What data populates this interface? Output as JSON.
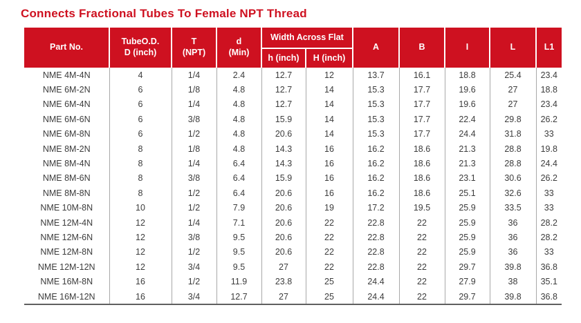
{
  "title": "Connects Fractional Tubes To Female NPT Thread",
  "colors": {
    "accent_red": "#ce1120",
    "header_text": "#ffffff",
    "body_text": "#3c3c3c",
    "grid_line": "#a8a8a8",
    "bottom_border": "#5f5f5f"
  },
  "table": {
    "headers": {
      "part_no": "Part No.",
      "tube_od": "TubeO.D.\nD (inch)",
      "t_npt": "T\n(NPT)",
      "d_min": "d\n(Min)",
      "width_across_flat": "Width Across Flat",
      "h_lower_inch": "h (inch)",
      "h_upper_inch": "H (inch)",
      "a": "A",
      "b": "B",
      "i": "I",
      "l": "L",
      "l1": "L1"
    },
    "rows": [
      [
        "NME 4M-4N",
        "4",
        "1/4",
        "2.4",
        "12.7",
        "12",
        "13.7",
        "16.1",
        "18.8",
        "25.4",
        "23.4"
      ],
      [
        "NME 6M-2N",
        "6",
        "1/8",
        "4.8",
        "12.7",
        "14",
        "15.3",
        "17.7",
        "19.6",
        "27",
        "18.8"
      ],
      [
        "NME 6M-4N",
        "6",
        "1/4",
        "4.8",
        "12.7",
        "14",
        "15.3",
        "17.7",
        "19.6",
        "27",
        "23.4"
      ],
      [
        "NME 6M-6N",
        "6",
        "3/8",
        "4.8",
        "15.9",
        "14",
        "15.3",
        "17.7",
        "22.4",
        "29.8",
        "26.2"
      ],
      [
        "NME 6M-8N",
        "6",
        "1/2",
        "4.8",
        "20.6",
        "14",
        "15.3",
        "17.7",
        "24.4",
        "31.8",
        "33"
      ],
      [
        "NME 8M-2N",
        "8",
        "1/8",
        "4.8",
        "14.3",
        "16",
        "16.2",
        "18.6",
        "21.3",
        "28.8",
        "19.8"
      ],
      [
        "NME 8M-4N",
        "8",
        "1/4",
        "6.4",
        "14.3",
        "16",
        "16.2",
        "18.6",
        "21.3",
        "28.8",
        "24.4"
      ],
      [
        "NME 8M-6N",
        "8",
        "3/8",
        "6.4",
        "15.9",
        "16",
        "16.2",
        "18.6",
        "23.1",
        "30.6",
        "26.2"
      ],
      [
        "NME 8M-8N",
        "8",
        "1/2",
        "6.4",
        "20.6",
        "16",
        "16.2",
        "18.6",
        "25.1",
        "32.6",
        "33"
      ],
      [
        "NME 10M-8N",
        "10",
        "1/2",
        "7.9",
        "20.6",
        "19",
        "17.2",
        "19.5",
        "25.9",
        "33.5",
        "33"
      ],
      [
        "NME 12M-4N",
        "12",
        "1/4",
        "7.1",
        "20.6",
        "22",
        "22.8",
        "22",
        "25.9",
        "36",
        "28.2"
      ],
      [
        "NME 12M-6N",
        "12",
        "3/8",
        "9.5",
        "20.6",
        "22",
        "22.8",
        "22",
        "25.9",
        "36",
        "28.2"
      ],
      [
        "NME 12M-8N",
        "12",
        "1/2",
        "9.5",
        "20.6",
        "22",
        "22.8",
        "22",
        "25.9",
        "36",
        "33"
      ],
      [
        "NME 12M-12N",
        "12",
        "3/4",
        "9.5",
        "27",
        "22",
        "22.8",
        "22",
        "29.7",
        "39.8",
        "36.8"
      ],
      [
        "NME 16M-8N",
        "16",
        "1/2",
        "11.9",
        "23.8",
        "25",
        "24.4",
        "22",
        "27.9",
        "38",
        "35.1"
      ],
      [
        "NME 16M-12N",
        "16",
        "3/4",
        "12.7",
        "27",
        "25",
        "24.4",
        "22",
        "29.7",
        "39.8",
        "36.8"
      ]
    ]
  }
}
